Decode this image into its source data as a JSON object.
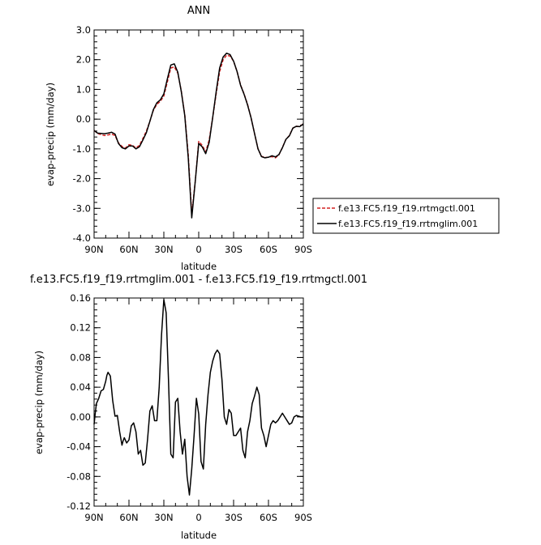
{
  "colors": {
    "series_ctl": "#d42020",
    "series_lim": "#000000",
    "axis": "#000000"
  },
  "chart_data": [
    {
      "type": "line",
      "title": "ANN",
      "xlabel": "latitude",
      "ylabel": "evap-precip (mm/day)",
      "xlim": [
        -90,
        90
      ],
      "ylim": [
        -4.0,
        3.0
      ],
      "x_ticks": [
        -90,
        -60,
        -30,
        0,
        30,
        60,
        90
      ],
      "x_tick_labels": [
        "90N",
        "60N",
        "30N",
        "0",
        "30S",
        "60S",
        "90S"
      ],
      "y_ticks": [
        -4,
        -3,
        -2,
        -1,
        0,
        1,
        2,
        3
      ],
      "y_tick_labels": [
        "-4.0",
        "-3.0",
        "-2.0",
        "-1.0",
        "0.0",
        "1.0",
        "2.0",
        "3.0"
      ],
      "legend": "right",
      "series": [
        {
          "name": "f.e13.FC5.f19_f19.rrtmgctl.001",
          "color": "series_ctl",
          "dash": "dashed",
          "x": [
            -90,
            -87,
            -84,
            -81,
            -78,
            -75,
            -72,
            -69,
            -66,
            -63,
            -60,
            -57,
            -54,
            -51,
            -48,
            -45,
            -42,
            -39,
            -36,
            -33,
            -30,
            -27,
            -24,
            -21,
            -18,
            -15,
            -12,
            -9,
            -6,
            -3,
            0,
            3,
            6,
            9,
            12,
            15,
            18,
            21,
            24,
            27,
            30,
            33,
            36,
            39,
            42,
            45,
            48,
            51,
            54,
            57,
            60,
            63,
            66,
            69,
            72,
            75,
            78,
            81,
            84,
            87,
            90
          ],
          "y": [
            -0.38,
            -0.48,
            -0.52,
            -0.55,
            -0.53,
            -0.5,
            -0.55,
            -0.8,
            -0.92,
            -0.97,
            -0.86,
            -0.88,
            -0.97,
            -0.88,
            -0.65,
            -0.4,
            -0.07,
            0.3,
            0.5,
            0.6,
            0.78,
            1.25,
            1.72,
            1.76,
            1.55,
            0.95,
            0.15,
            -1.2,
            -3.2,
            -2.1,
            -0.75,
            -0.88,
            -1.1,
            -0.7,
            0.05,
            0.85,
            1.6,
            2.0,
            2.15,
            2.12,
            1.95,
            1.6,
            1.15,
            0.85,
            0.5,
            0.05,
            -0.48,
            -1.0,
            -1.25,
            -1.29,
            -1.28,
            -1.26,
            -1.3,
            -1.2,
            -0.95,
            -0.68,
            -0.55,
            -0.3,
            -0.24,
            -0.25,
            -0.15
          ]
        },
        {
          "name": "f.e13.FC5.f19_f19.rrtmglim.001",
          "color": "series_lim",
          "dash": "solid",
          "x": [
            -90,
            -87,
            -84,
            -81,
            -78,
            -75,
            -72,
            -69,
            -66,
            -63,
            -60,
            -57,
            -54,
            -51,
            -48,
            -45,
            -42,
            -39,
            -36,
            -33,
            -30,
            -27,
            -24,
            -21,
            -18,
            -15,
            -12,
            -9,
            -6,
            -3,
            0,
            3,
            6,
            9,
            12,
            15,
            18,
            21,
            24,
            27,
            30,
            33,
            36,
            39,
            42,
            45,
            48,
            51,
            54,
            57,
            60,
            63,
            66,
            69,
            72,
            75,
            78,
            81,
            84,
            87,
            90
          ],
          "y": [
            -0.38,
            -0.47,
            -0.48,
            -0.49,
            -0.47,
            -0.44,
            -0.5,
            -0.82,
            -0.96,
            -1.0,
            -0.9,
            -0.9,
            -1.0,
            -0.93,
            -0.7,
            -0.45,
            -0.07,
            0.32,
            0.55,
            0.65,
            0.85,
            1.35,
            1.82,
            1.86,
            1.58,
            0.93,
            0.12,
            -1.3,
            -3.32,
            -2.1,
            -0.82,
            -0.93,
            -1.16,
            -0.78,
            0.05,
            0.92,
            1.72,
            2.09,
            2.22,
            2.17,
            1.95,
            1.6,
            1.14,
            0.84,
            0.48,
            0.05,
            -0.48,
            -1.0,
            -1.26,
            -1.3,
            -1.28,
            -1.23,
            -1.27,
            -1.19,
            -0.96,
            -0.68,
            -0.56,
            -0.3,
            -0.24,
            -0.25,
            -0.16
          ]
        }
      ]
    },
    {
      "type": "line",
      "title": "f.e13.FC5.f19_f19.rrtmglim.001 - f.e13.FC5.f19_f19.rrtmgctl.001",
      "xlabel": "latitude",
      "ylabel": "evap-precip (mm/day)",
      "xlim": [
        -90,
        90
      ],
      "ylim": [
        -0.12,
        0.16
      ],
      "x_ticks": [
        -90,
        -60,
        -30,
        0,
        30,
        60,
        90
      ],
      "x_tick_labels": [
        "90N",
        "60N",
        "30N",
        "0",
        "30S",
        "60S",
        "90S"
      ],
      "y_ticks": [
        -0.12,
        -0.08,
        -0.04,
        0,
        0.04,
        0.08,
        0.12,
        0.16
      ],
      "y_tick_labels": [
        "-0.12",
        "-0.08",
        "-0.04",
        "0.00",
        "0.04",
        "0.08",
        "0.12",
        "0.16"
      ],
      "series": [
        {
          "color": "series_lim",
          "dash": "solid",
          "x": [
            -90,
            -89,
            -88,
            -86,
            -84,
            -82,
            -80,
            -79,
            -78,
            -76,
            -74,
            -72,
            -70,
            -68,
            -66,
            -65,
            -64,
            -62,
            -60,
            -58,
            -56,
            -54,
            -52,
            -50,
            -48,
            -46,
            -44,
            -42,
            -40,
            -38,
            -36,
            -34,
            -32,
            -30,
            -28,
            -26,
            -24,
            -22,
            -20,
            -18,
            -16,
            -14,
            -12,
            -10,
            -8,
            -6,
            -4,
            -2,
            0,
            2,
            4,
            6,
            8,
            10,
            12,
            14,
            16,
            18,
            20,
            22,
            24,
            26,
            28,
            30,
            32,
            34,
            36,
            38,
            40,
            42,
            44,
            46,
            48,
            50,
            52,
            54,
            56,
            58,
            60,
            62,
            64,
            66,
            68,
            70,
            72,
            74,
            76,
            78,
            80,
            82,
            84,
            86,
            88,
            90
          ],
          "y": [
            -0.01,
            0.005,
            0.018,
            0.025,
            0.035,
            0.037,
            0.048,
            0.056,
            0.06,
            0.055,
            0.022,
            0.001,
            0.002,
            -0.02,
            -0.038,
            -0.032,
            -0.028,
            -0.035,
            -0.031,
            -0.012,
            -0.008,
            -0.02,
            -0.05,
            -0.045,
            -0.065,
            -0.062,
            -0.03,
            0.008,
            0.015,
            -0.005,
            -0.005,
            0.04,
            0.11,
            0.158,
            0.14,
            0.05,
            -0.05,
            -0.055,
            0.02,
            0.025,
            -0.02,
            -0.05,
            -0.03,
            -0.08,
            -0.105,
            -0.07,
            -0.025,
            0.025,
            0.004,
            -0.06,
            -0.07,
            -0.01,
            0.03,
            0.06,
            0.075,
            0.085,
            0.09,
            0.085,
            0.05,
            0.0,
            -0.01,
            0.01,
            0.005,
            -0.025,
            -0.025,
            -0.02,
            -0.015,
            -0.045,
            -0.055,
            -0.02,
            -0.005,
            0.018,
            0.028,
            0.04,
            0.03,
            -0.015,
            -0.025,
            -0.04,
            -0.025,
            -0.01,
            -0.005,
            -0.008,
            -0.005,
            0.0,
            0.005,
            0.0,
            -0.005,
            -0.01,
            -0.008,
            0.0,
            0.002,
            0.001,
            0.0,
            0.0
          ]
        }
      ]
    }
  ]
}
